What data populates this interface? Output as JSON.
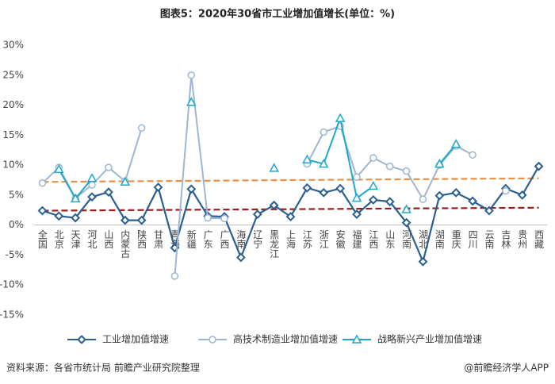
{
  "chart_data": {
    "type": "line",
    "title": "图表5：2020年30省市工业增加值增长(单位：%)",
    "categories": [
      "全国",
      "北京",
      "天津",
      "河北",
      "山西",
      "内蒙古",
      "陕西",
      "甘肃",
      "青海",
      "新疆",
      "广东",
      "广西",
      "海南",
      "辽宁",
      "黑龙江",
      "上海",
      "江苏",
      "浙江",
      "安徽",
      "福建",
      "江西",
      "山东",
      "河南",
      "湖北",
      "湖南",
      "重庆",
      "四川",
      "云南",
      "吉林",
      "贵州",
      "西藏"
    ],
    "series": [
      {
        "name": "工业增加值增速",
        "color": "#2a5f8f",
        "marker": "diamond",
        "values": [
          2.4,
          1.5,
          1.2,
          4.7,
          5.5,
          0.8,
          0.8,
          6.3,
          -3.8,
          6.0,
          1.5,
          1.4,
          -5.4,
          1.8,
          3.3,
          1.4,
          6.2,
          5.4,
          6.1,
          1.8,
          4.2,
          3.9,
          0.4,
          -6.1,
          4.9,
          5.4,
          4.0,
          2.4,
          6.1,
          5.0,
          9.8
        ]
      },
      {
        "name": "高技术制造业增加值增速",
        "color": "#9cb6d3",
        "marker": "circle",
        "values": [
          7.0,
          9.6,
          4.5,
          6.7,
          9.6,
          7.3,
          16.2,
          null,
          -8.5,
          25.0,
          1.2,
          1.1,
          null,
          null,
          null,
          null,
          10.2,
          15.5,
          16.5,
          8.0,
          11.2,
          9.8,
          9.0,
          4.3,
          10.0,
          13.2,
          11.7,
          null,
          5.7,
          null,
          null
        ]
      },
      {
        "name": "战略新兴产业增加值增速",
        "color": "#1ea7c9",
        "marker": "triangle",
        "values": [
          null,
          9.3,
          4.4,
          7.8,
          null,
          7.2,
          null,
          null,
          null,
          20.5,
          null,
          null,
          null,
          null,
          9.5,
          null,
          10.9,
          10.2,
          17.8,
          4.5,
          6.5,
          null,
          2.6,
          null,
          10.2,
          13.5,
          null,
          null,
          null,
          null,
          null
        ]
      }
    ],
    "trendlines": [
      {
        "color": "#e8904a",
        "values": [
          7.2,
          7.8
        ]
      },
      {
        "color": "#9b1c1c",
        "values": [
          2.4,
          2.9
        ]
      }
    ],
    "ylim": [
      -15,
      30
    ],
    "yticks": [
      {
        "value": -15,
        "label": "-15%"
      },
      {
        "value": -10,
        "label": "-10%"
      },
      {
        "value": -5,
        "label": "-5%"
      },
      {
        "value": 0,
        "label": "0%"
      },
      {
        "value": 5,
        "label": "5%"
      },
      {
        "value": 10,
        "label": "10%"
      },
      {
        "value": 15,
        "label": "15%"
      },
      {
        "value": 20,
        "label": "20%"
      },
      {
        "value": 25,
        "label": "25%"
      },
      {
        "value": 30,
        "label": "30%"
      }
    ],
    "grid": false,
    "legend": "bottom",
    "source": "资料来源：各省市统计局 前瞻产业研究院整理",
    "credit": "@前瞻经济学人APP"
  }
}
